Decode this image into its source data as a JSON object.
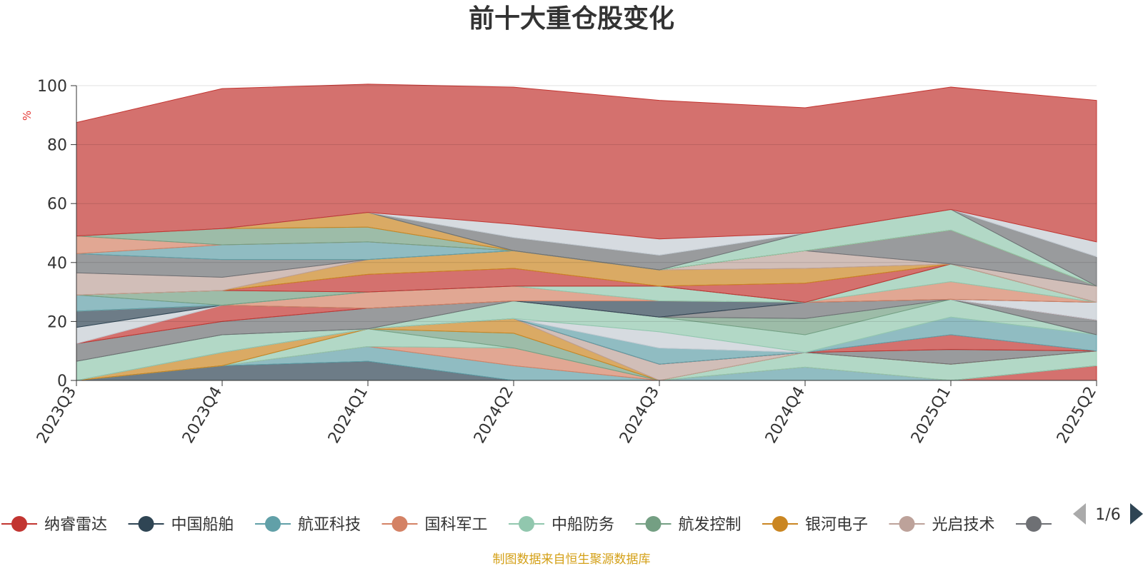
{
  "chart_data": {
    "type": "area",
    "stacked": true,
    "title": "前十大重仓股变化",
    "ylabel": "%",
    "ylim": [
      0,
      100
    ],
    "yticks": [
      0,
      20,
      40,
      60,
      80,
      100
    ],
    "categories": [
      "2023Q3",
      "2023Q4",
      "2024Q1",
      "2024Q2",
      "2024Q3",
      "2024Q4",
      "2025Q1",
      "2025Q2"
    ],
    "grid": true,
    "legend_position": "bottom",
    "legend_page": "1/6",
    "series": [
      {
        "name": "纳睿雷达",
        "color": "#c23531",
        "values": [
          0,
          0,
          0,
          0,
          0,
          0,
          0,
          5
        ]
      },
      {
        "name": "中国船舶",
        "color": "#2f4554",
        "values": [
          0,
          5,
          6.5,
          0,
          0,
          0,
          0,
          0
        ]
      },
      {
        "name": "航亚科技",
        "color": "#61a0a8",
        "values": [
          0,
          0,
          5,
          5,
          0,
          4.5,
          0,
          0
        ]
      },
      {
        "name": "国科军工",
        "color": "#d48265",
        "values": [
          0,
          0,
          0,
          6,
          0,
          0,
          0,
          0
        ]
      },
      {
        "name": "中船防务",
        "color": "#91c7ae",
        "values": [
          0,
          0,
          6,
          0,
          0,
          5,
          5.5,
          5
        ]
      },
      {
        "name": "航发控制",
        "color": "#749f83",
        "values": [
          0,
          0,
          0,
          5,
          0,
          0,
          0,
          0
        ]
      },
      {
        "name": "银河电子",
        "color": "#ca8622",
        "values": [
          0,
          4.5,
          0,
          5,
          0,
          0,
          0,
          0
        ]
      },
      {
        "name": "光启技术",
        "color": "#bda29a",
        "values": [
          0,
          0,
          0,
          0,
          5.5,
          0,
          0,
          0
        ]
      },
      {
        "color": "#6e7074",
        "values": [
          0,
          0,
          0,
          0,
          0,
          0,
          5,
          0
        ]
      },
      {
        "color": "#c23531",
        "values": [
          0,
          0,
          0,
          0,
          0,
          0,
          5,
          0
        ]
      },
      {
        "color": "#61a0a8",
        "values": [
          0,
          0,
          0,
          0,
          5.5,
          0,
          6,
          5.5
        ]
      },
      {
        "color": "#c4ccd3",
        "values": [
          0,
          0,
          0,
          0,
          5.5,
          0,
          0,
          0
        ]
      },
      {
        "color": "#91c7ae",
        "values": [
          6.5,
          6,
          0,
          6,
          5,
          6,
          6,
          0
        ]
      },
      {
        "color": "#749f83",
        "values": [
          0,
          0,
          0,
          0,
          0,
          5.5,
          0,
          0
        ]
      },
      {
        "color": "#6e7074",
        "values": [
          6,
          4.5,
          7,
          0,
          0,
          5.5,
          0,
          5
        ]
      },
      {
        "color": "#c23531",
        "values": [
          0,
          5.5,
          0,
          0,
          0,
          0,
          0,
          0
        ]
      },
      {
        "color": "#c4ccd3",
        "values": [
          5.5,
          0,
          0,
          0,
          0,
          0,
          0,
          6
        ]
      },
      {
        "color": "#2f4554",
        "values": [
          5.5,
          0,
          0,
          0,
          5.5,
          0,
          0,
          0
        ]
      },
      {
        "color": "#d48265",
        "values": [
          0,
          0,
          5.5,
          5,
          0,
          0,
          6,
          0
        ]
      },
      {
        "color": "#91c7ae",
        "values": [
          0,
          0,
          0,
          0,
          5,
          0,
          6,
          0
        ]
      },
      {
        "color": "#61a0a8",
        "values": [
          5.5,
          0,
          0,
          0,
          0,
          0,
          0,
          0
        ]
      },
      {
        "color": "#749f83",
        "values": [
          0,
          5,
          0,
          0,
          0,
          0,
          0,
          0
        ]
      },
      {
        "color": "#c23531",
        "values": [
          0,
          0,
          6,
          6,
          0,
          6.5,
          0,
          0
        ]
      },
      {
        "color": "#ca8622",
        "values": [
          0,
          0,
          5,
          6,
          5.5,
          5,
          0,
          0
        ]
      },
      {
        "color": "#bda29a",
        "values": [
          7.5,
          4.5,
          0,
          0,
          0,
          6,
          0,
          5.5
        ]
      },
      {
        "color": "#6e7074",
        "values": [
          6.5,
          6,
          0,
          0,
          0,
          0,
          11.5,
          0
        ]
      },
      {
        "color": "#61a0a8",
        "values": [
          0,
          5,
          6,
          0,
          0,
          0,
          0,
          0
        ]
      },
      {
        "color": "#d48265",
        "values": [
          6,
          0,
          0,
          0,
          0,
          0,
          0,
          0
        ]
      },
      {
        "color": "#749f83",
        "values": [
          0,
          5.5,
          5,
          0,
          0,
          0,
          0,
          0
        ]
      },
      {
        "color": "#ca8622",
        "values": [
          0,
          0,
          5,
          0,
          0,
          0,
          0,
          0
        ]
      },
      {
        "color": "#91c7ae",
        "values": [
          0,
          0,
          0,
          0,
          0,
          6,
          7,
          0
        ]
      },
      {
        "color": "#6e7074",
        "values": [
          0,
          0,
          0,
          4.5,
          5,
          0,
          0,
          10
        ]
      },
      {
        "color": "#c4ccd3",
        "values": [
          0,
          0,
          0,
          4.5,
          5.5,
          0,
          0,
          5
        ]
      },
      {
        "color": "#c23531",
        "values": [
          38.5,
          47.5,
          43.5,
          46.5,
          47,
          42.5,
          41.5,
          48
        ]
      }
    ]
  },
  "source_note": "制图数据来自恒生聚源数据库"
}
